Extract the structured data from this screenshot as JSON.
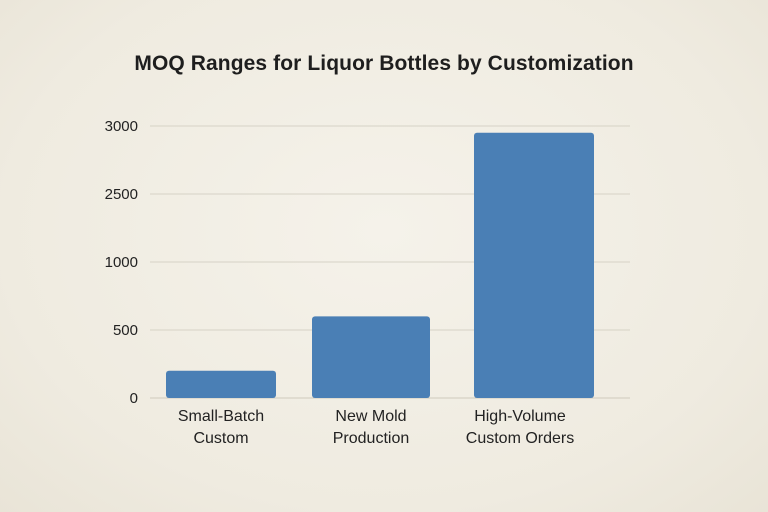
{
  "chart_data": {
    "type": "bar",
    "title": "MOQ Ranges for Liquor Bottles by Customization",
    "xlabel": "",
    "ylabel": "",
    "categories": [
      [
        "Small-Batch",
        "Custom"
      ],
      [
        "New Mold",
        "Production"
      ],
      [
        "High-Volume",
        "Custom Orders"
      ]
    ],
    "values": [
      200,
      600,
      2950
    ],
    "y_tick_labels": [
      "0",
      "500",
      "1000",
      "2500",
      "3000"
    ],
    "y_tick_values": [
      0,
      500,
      1000,
      2500,
      3000
    ],
    "grid": true,
    "legend": "none",
    "colors": {
      "bar": "#4a7fb5",
      "grid": "#d6d2c6",
      "background": "#f1eee4"
    }
  }
}
